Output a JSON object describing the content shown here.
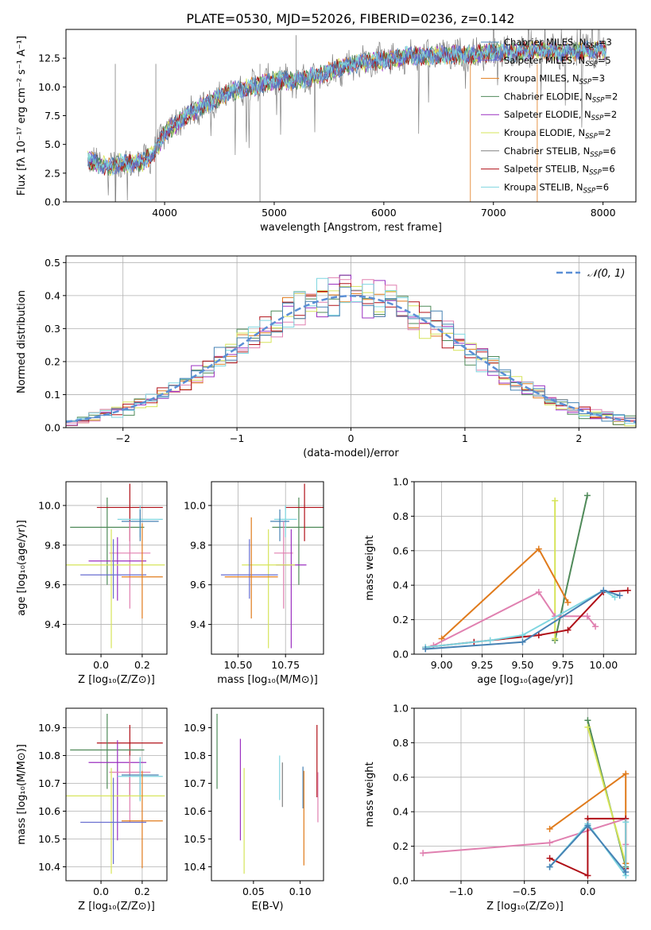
{
  "figure_title": "PLATE=0530, MJD=52026, FIBERID=0236, z=0.142",
  "colors": {
    "Chabrier MILES": "#4682b4",
    "Salpeter MILES": "#6a6fd0",
    "Kroupa MILES": "#e07b1c",
    "Chabrier ELODIE": "#4f8a59",
    "Salpeter ELODIE": "#9b30c0",
    "Kroupa ELODIE": "#d6e45a",
    "Chabrier STELIB": "#808080",
    "Salpeter STELIB": "#b01018",
    "Kroupa STELIB": "#7fd6e0",
    "normal": "#5b8fd6",
    "pink": "#e080b0",
    "grid": "#b0b0b0"
  },
  "chart_data": [
    {
      "id": "spectrum",
      "type": "line",
      "xlabel": "wavelength [Angstrom, rest frame]",
      "ylabel": "Flux [fλ 10⁻¹⁷ erg cm⁻² s⁻¹ A⁻¹]",
      "xlim": [
        3100,
        8300
      ],
      "ylim": [
        0,
        15
      ],
      "xticks": [
        4000,
        5000,
        6000,
        7000,
        8000
      ],
      "yticks": [
        0.0,
        2.5,
        5.0,
        7.5,
        10.0,
        12.5
      ],
      "ytick_labels": [
        "0.0",
        "2.5",
        "5.0",
        "7.5",
        "10.0",
        "12.5"
      ],
      "grid": false,
      "legend_position": "right",
      "continuum": [
        [
          3300,
          3.6
        ],
        [
          3400,
          3.3
        ],
        [
          3500,
          3.0
        ],
        [
          3600,
          3.4
        ],
        [
          3700,
          3.3
        ],
        [
          3800,
          3.5
        ],
        [
          3900,
          4.2
        ],
        [
          4000,
          6.0
        ],
        [
          4200,
          7.5
        ],
        [
          4400,
          8.6
        ],
        [
          4600,
          9.6
        ],
        [
          4800,
          10.0
        ],
        [
          5000,
          10.6
        ],
        [
          5200,
          10.5
        ],
        [
          5400,
          11.0
        ],
        [
          5600,
          11.7
        ],
        [
          5800,
          12.1
        ],
        [
          6000,
          12.3
        ],
        [
          6200,
          12.7
        ],
        [
          6400,
          12.7
        ],
        [
          6600,
          12.8
        ],
        [
          6800,
          12.8
        ],
        [
          7000,
          13.0
        ],
        [
          7200,
          13.0
        ],
        [
          7400,
          13.2
        ],
        [
          7600,
          13.0
        ],
        [
          7800,
          13.1
        ],
        [
          8000,
          13.2
        ]
      ],
      "series": [
        {
          "name": "Chabrier MILES, N_SSP=3",
          "name_main": "Chabrier MILES, N",
          "sub": "SSP",
          "tail": "=3"
        },
        {
          "name": "Salpeter MILES, N_SSP=5",
          "name_main": "Salpeter MILES, N",
          "sub": "SSP",
          "tail": "=5"
        },
        {
          "name": "Kroupa MILES, N_SSP=3",
          "name_main": "Kroupa MILES, N",
          "sub": "SSP",
          "tail": "=3"
        },
        {
          "name": "Chabrier ELODIE, N_SSP=2",
          "name_main": "Chabrier ELODIE, N",
          "sub": "SSP",
          "tail": "=2"
        },
        {
          "name": "Salpeter ELODIE, N_SSP=2",
          "name_main": "Salpeter ELODIE, N",
          "sub": "SSP",
          "tail": "=2"
        },
        {
          "name": "Kroupa ELODIE, N_SSP=2",
          "name_main": "Kroupa ELODIE, N",
          "sub": "SSP",
          "tail": "=2"
        },
        {
          "name": "Chabrier STELIB, N_SSP=6",
          "name_main": "Chabrier STELIB, N",
          "sub": "SSP",
          "tail": "=6"
        },
        {
          "name": "Salpeter STELIB, N_SSP=6",
          "name_main": "Salpeter STELIB, N",
          "sub": "SSP",
          "tail": "=6"
        },
        {
          "name": "Kroupa STELIB, N_SSP=6",
          "name_main": "Kroupa STELIB, N",
          "sub": "SSP",
          "tail": "=6"
        }
      ]
    },
    {
      "id": "residuals",
      "type": "line",
      "xlabel": "(data-model)/error",
      "ylabel": "Normed distribution",
      "xlim": [
        -2.5,
        2.5
      ],
      "ylim": [
        0,
        0.52
      ],
      "xticks": [
        -2,
        -1,
        0,
        1,
        2
      ],
      "xtick_labels": [
        "−2",
        "−1",
        "0",
        "1",
        "2"
      ],
      "yticks": [
        0.0,
        0.1,
        0.2,
        0.3,
        0.4,
        0.5
      ],
      "ytick_labels": [
        "0.0",
        "0.1",
        "0.2",
        "0.3",
        "0.4",
        "0.5"
      ],
      "grid": true,
      "legend_position": "top-right",
      "legend_label": "𝒩(0, 1)",
      "bin_width": 0.1,
      "normal_curve": {
        "mean": 0,
        "sigma": 1
      }
    },
    {
      "id": "age_vs_Z",
      "type": "scatter",
      "xlabel": "Z [log₁₀(Z/Z⊙)]",
      "ylabel": "age  [log₁₀(age/yr)]",
      "xlim": [
        -0.17,
        0.32
      ],
      "ylim": [
        9.25,
        10.12
      ],
      "xticks": [
        0.0,
        0.2
      ],
      "xtick_labels": [
        "0.0",
        "0.2"
      ],
      "yticks": [
        9.4,
        9.6,
        9.8,
        10.0
      ],
      "ytick_labels": [
        "9.4",
        "9.6",
        "9.8",
        "10.0"
      ],
      "grid": true,
      "errorbars": [
        {
          "series": "Chabrier ELODIE",
          "x": 0.03,
          "xerr": 0.18,
          "y": 9.89,
          "yerr": [
            0.29,
            0.15
          ]
        },
        {
          "series": "Salpeter STELIB",
          "x": 0.14,
          "xerr": 0.16,
          "y": 9.99,
          "yerr": [
            0.17,
            0.12
          ]
        },
        {
          "series": "Kroupa STELIB",
          "x": 0.19,
          "xerr": 0.11,
          "y": 9.93,
          "yerr": [
            0.09,
            0.07
          ]
        },
        {
          "series": "Chabrier MILES",
          "x": 0.19,
          "xerr": 0.09,
          "y": 9.92,
          "yerr": [
            0.1,
            0.06
          ]
        },
        {
          "series": "pink",
          "x": 0.14,
          "xerr": 0.1,
          "y": 9.76,
          "yerr": [
            0.28,
            0.16
          ]
        },
        {
          "series": "Salpeter ELODIE",
          "x": 0.08,
          "xerr": 0.14,
          "y": 9.72,
          "yerr": [
            0.2,
            0.12
          ]
        },
        {
          "series": "Kroupa ELODIE",
          "x": 0.05,
          "xerr": 0.26,
          "y": 9.7,
          "yerr": [
            0.42,
            0.18
          ]
        },
        {
          "series": "Salpeter MILES",
          "x": 0.06,
          "xerr": 0.16,
          "y": 9.65,
          "yerr": [
            0.12,
            0.18
          ]
        },
        {
          "series": "Kroupa MILES",
          "x": 0.2,
          "xerr": 0.1,
          "y": 9.64,
          "yerr": [
            0.21,
            0.27
          ]
        }
      ]
    },
    {
      "id": "age_vs_mass",
      "type": "scatter",
      "xlabel": "mass [log₁₀(M/M⊙)]",
      "xlim": [
        10.36,
        10.95
      ],
      "ylim": [
        9.25,
        10.12
      ],
      "xticks": [
        10.5,
        10.75
      ],
      "xtick_labels": [
        "10.50",
        "10.75"
      ],
      "yticks": [
        9.4,
        9.6,
        9.8,
        10.0
      ],
      "ytick_labels": [
        "9.4",
        "9.6",
        "9.8",
        "10.0"
      ],
      "grid": true,
      "errorbars": [
        {
          "series": "Chabrier ELODIE",
          "x": 10.82,
          "xerr": 0.14,
          "y": 9.89,
          "yerr": [
            0.29,
            0.15
          ]
        },
        {
          "series": "Salpeter STELIB",
          "x": 10.85,
          "xerr": 0.1,
          "y": 9.99,
          "yerr": [
            0.17,
            0.12
          ]
        },
        {
          "series": "Kroupa STELIB",
          "x": 10.75,
          "xerr": 0.06,
          "y": 9.93,
          "yerr": [
            0.09,
            0.07
          ]
        },
        {
          "series": "Chabrier MILES",
          "x": 10.72,
          "xerr": 0.05,
          "y": 9.92,
          "yerr": [
            0.1,
            0.06
          ]
        },
        {
          "series": "pink",
          "x": 10.74,
          "xerr": 0.05,
          "y": 9.76,
          "yerr": [
            0.28,
            0.16
          ]
        },
        {
          "series": "Salpeter ELODIE",
          "x": 10.78,
          "xerr": 0.08,
          "y": 9.7,
          "yerr": [
            0.42,
            0.18
          ]
        },
        {
          "series": "Kroupa ELODIE",
          "x": 10.66,
          "xerr": 0.14,
          "y": 9.7,
          "yerr": [
            0.42,
            0.18
          ]
        },
        {
          "series": "Salpeter MILES",
          "x": 10.56,
          "xerr": 0.15,
          "y": 9.65,
          "yerr": [
            0.12,
            0.18
          ]
        },
        {
          "series": "Kroupa MILES",
          "x": 10.57,
          "xerr": 0.14,
          "y": 9.64,
          "yerr": [
            0.21,
            0.3
          ]
        }
      ]
    },
    {
      "id": "massweight_vs_age",
      "type": "line",
      "xlabel": "age  [log₁₀(age/yr)]",
      "ylabel": "mass weight",
      "xlim": [
        8.83,
        10.2
      ],
      "ylim": [
        0,
        1.0
      ],
      "xticks": [
        9.0,
        9.25,
        9.5,
        9.75,
        10.0
      ],
      "xtick_labels": [
        "9.00",
        "9.25",
        "9.50",
        "9.75",
        "10.00"
      ],
      "yticks": [
        0.0,
        0.2,
        0.4,
        0.6,
        0.8,
        1.0
      ],
      "ytick_labels": [
        "0.0",
        "0.2",
        "0.4",
        "0.6",
        "0.8",
        "1.0"
      ],
      "grid": true,
      "series": [
        {
          "series": "Chabrier ELODIE",
          "x": [
            9.7,
            9.9
          ],
          "y": [
            0.08,
            0.92
          ]
        },
        {
          "series": "Kroupa ELODIE",
          "x": [
            9.7,
            9.7
          ],
          "y": [
            0.09,
            0.89
          ]
        },
        {
          "series": "Kroupa MILES",
          "x": [
            9.0,
            9.6,
            9.78
          ],
          "y": [
            0.09,
            0.61,
            0.3
          ]
        },
        {
          "series": "pink",
          "x": [
            8.95,
            9.6,
            9.7,
            9.9,
            9.95
          ],
          "y": [
            0.05,
            0.36,
            0.22,
            0.22,
            0.16
          ]
        },
        {
          "series": "Salpeter STELIB",
          "x": [
            8.9,
            9.2,
            9.6,
            9.78,
            10.0,
            10.15
          ],
          "y": [
            0.04,
            0.07,
            0.11,
            0.14,
            0.36,
            0.37
          ]
        },
        {
          "series": "Kroupa STELIB",
          "x": [
            8.9,
            9.3,
            9.5,
            10.0,
            10.07
          ],
          "y": [
            0.04,
            0.08,
            0.11,
            0.37,
            0.33
          ]
        },
        {
          "series": "Chabrier MILES",
          "x": [
            8.9,
            9.5,
            10.0,
            10.1
          ],
          "y": [
            0.03,
            0.07,
            0.37,
            0.34
          ]
        }
      ]
    },
    {
      "id": "mass_vs_Z",
      "type": "scatter",
      "xlabel": "Z [log₁₀(Z/Z⊙)]",
      "ylabel": "mass [log₁₀(M/M⊙)]",
      "xlim": [
        -0.17,
        0.32
      ],
      "ylim": [
        10.35,
        10.97
      ],
      "xticks": [
        0.0,
        0.2
      ],
      "xtick_labels": [
        "0.0",
        "0.2"
      ],
      "yticks": [
        10.4,
        10.5,
        10.6,
        10.7,
        10.8,
        10.9
      ],
      "ytick_labels": [
        "10.4",
        "10.5",
        "10.6",
        "10.7",
        "10.8",
        "10.9"
      ],
      "grid": true,
      "errorbars": [
        {
          "series": "Salpeter STELIB",
          "x": 0.14,
          "xerr": 0.16,
          "y": 10.845,
          "yerr": [
            0.19,
            0.065
          ]
        },
        {
          "series": "Chabrier ELODIE",
          "x": 0.03,
          "xerr": 0.18,
          "y": 10.82,
          "yerr": [
            0.14,
            0.13
          ]
        },
        {
          "series": "Salpeter ELODIE",
          "x": 0.08,
          "xerr": 0.14,
          "y": 10.775,
          "yerr": [
            0.28,
            0.08
          ]
        },
        {
          "series": "pink",
          "x": 0.14,
          "xerr": 0.1,
          "y": 10.74,
          "yerr": [
            0.18,
            0.06
          ]
        },
        {
          "series": "Chabrier MILES",
          "x": 0.19,
          "xerr": 0.09,
          "y": 10.73,
          "yerr": [
            0.09,
            0.06
          ]
        },
        {
          "series": "Kroupa STELIB",
          "x": 0.19,
          "xerr": 0.11,
          "y": 10.725,
          "yerr": [
            0.09,
            0.07
          ]
        },
        {
          "series": "Kroupa ELODIE",
          "x": 0.05,
          "xerr": 0.26,
          "y": 10.655,
          "yerr": [
            0.28,
            0.1
          ]
        },
        {
          "series": "Kroupa MILES",
          "x": 0.2,
          "xerr": 0.1,
          "y": 10.565,
          "yerr": [
            0.17,
            0.18
          ]
        },
        {
          "series": "Salpeter MILES",
          "x": 0.06,
          "xerr": 0.16,
          "y": 10.56,
          "yerr": [
            0.15,
            0.16
          ]
        }
      ]
    },
    {
      "id": "mass_vs_ebv",
      "type": "scatter",
      "xlabel": "E(B-V)",
      "xlim": [
        0.005,
        0.125
      ],
      "ylim": [
        10.35,
        10.97
      ],
      "xticks": [
        0.05,
        0.1
      ],
      "xtick_labels": [
        "0.05",
        "0.10"
      ],
      "yticks": [
        10.4,
        10.5,
        10.6,
        10.7,
        10.8,
        10.9
      ],
      "ytick_labels": [
        "10.4",
        "10.5",
        "10.6",
        "10.7",
        "10.8",
        "10.9"
      ],
      "grid": false,
      "errorbars": [
        {
          "series": "Chabrier ELODIE",
          "x": 0.011,
          "y": 10.82,
          "yerr": [
            0.14,
            0.13
          ]
        },
        {
          "series": "Salpeter ELODIE",
          "x": 0.036,
          "y": 10.675,
          "yerr": [
            0.18,
            0.185
          ]
        },
        {
          "series": "Kroupa ELODIE",
          "x": 0.04,
          "y": 10.565,
          "yerr": [
            0.19,
            0.19
          ]
        },
        {
          "series": "Kroupa STELIB",
          "x": 0.078,
          "y": 10.72,
          "yerr": [
            0.08,
            0.08
          ]
        },
        {
          "series": "Chabrier STELIB",
          "x": 0.081,
          "y": 10.695,
          "yerr": [
            0.08,
            0.08
          ]
        },
        {
          "series": "Chabrier MILES",
          "x": 0.103,
          "y": 10.68,
          "yerr": [
            0.07,
            0.08
          ]
        },
        {
          "series": "Kroupa MILES",
          "x": 0.104,
          "y": 10.565,
          "yerr": [
            0.16,
            0.18
          ]
        },
        {
          "series": "Salpeter STELIB",
          "x": 0.118,
          "y": 10.78,
          "yerr": [
            0.13,
            0.13
          ]
        },
        {
          "series": "pink",
          "x": 0.119,
          "y": 10.65,
          "yerr": [
            0.09,
            0.09
          ]
        }
      ]
    },
    {
      "id": "massweight_vs_Z",
      "type": "line",
      "xlabel": "Z [log₁₀(Z/Z⊙)]",
      "ylabel": "mass weight",
      "xlim": [
        -1.37,
        0.38
      ],
      "ylim": [
        0,
        1.0
      ],
      "xticks": [
        -1.0,
        -0.5,
        0.0
      ],
      "xtick_labels": [
        "−1.0",
        "−0.5",
        "0.0"
      ],
      "yticks": [
        0.0,
        0.2,
        0.4,
        0.6,
        0.8,
        1.0
      ],
      "ytick_labels": [
        "0.0",
        "0.2",
        "0.4",
        "0.6",
        "0.8",
        "1.0"
      ],
      "grid": true,
      "series": [
        {
          "series": "Chabrier ELODIE",
          "x": [
            0.0,
            0.3
          ],
          "y": [
            0.93,
            0.08
          ]
        },
        {
          "series": "Kroupa ELODIE",
          "x": [
            0.0,
            0.3
          ],
          "y": [
            0.89,
            0.1
          ]
        },
        {
          "series": "Kroupa MILES",
          "x": [
            -0.3,
            0.3,
            0.3
          ],
          "y": [
            0.3,
            0.62,
            0.1
          ]
        },
        {
          "series": "pink",
          "x": [
            -1.3,
            -0.3,
            0.3,
            0.3
          ],
          "y": [
            0.16,
            0.22,
            0.36,
            0.21
          ]
        },
        {
          "series": "Salpeter STELIB",
          "x": [
            -0.3,
            0.0,
            0.0,
            0.3,
            0.3
          ],
          "y": [
            0.13,
            0.03,
            0.36,
            0.36,
            0.07
          ]
        },
        {
          "series": "Kroupa STELIB",
          "x": [
            -0.3,
            0.0,
            0.3,
            0.3
          ],
          "y": [
            0.08,
            0.33,
            0.03,
            0.34
          ]
        },
        {
          "series": "Chabrier MILES",
          "x": [
            -0.3,
            0.0,
            0.3
          ],
          "y": [
            0.08,
            0.32,
            0.05
          ]
        }
      ]
    }
  ]
}
